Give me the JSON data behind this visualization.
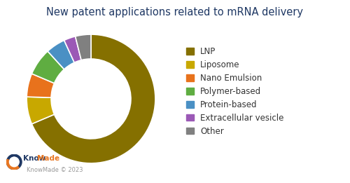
{
  "title": "New patent applications related to mRNA delivery",
  "title_color": "#1F3864",
  "title_fontsize": 10.5,
  "labels": [
    "LNP",
    "Liposome",
    "Nano Emulsion",
    "Polymer-based",
    "Protein-based",
    "Extracellular vesicle",
    "Other"
  ],
  "values": [
    70,
    7,
    6,
    7,
    5,
    3,
    4
  ],
  "colors": [
    "#857000",
    "#C8A800",
    "#E8721C",
    "#5FAD41",
    "#4A90C4",
    "#9B59B6",
    "#808080"
  ],
  "wedge_edge_color": "white",
  "background_color": "#ffffff",
  "donut_width": 0.38,
  "legend_fontsize": 8.5,
  "watermark_text": "KnowMade © 2023",
  "watermark_color": "#999999",
  "knowmade_blue": "#1F3864",
  "knowmade_orange": "#E87722"
}
